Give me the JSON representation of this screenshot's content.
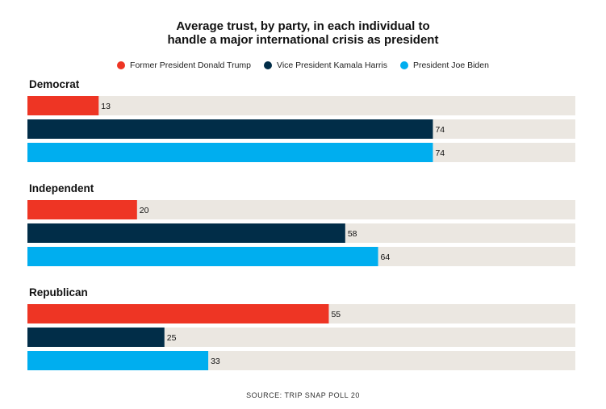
{
  "chart_data": {
    "type": "bar",
    "orientation": "horizontal",
    "title_lines": [
      "Average trust, by party, in each individual to",
      "handle a major international crisis as president"
    ],
    "categories": [
      "Democrat",
      "Independent",
      "Republican"
    ],
    "series": [
      {
        "name": "Former President Donald Trump",
        "color": "#ee3524",
        "values": [
          13,
          20,
          55
        ]
      },
      {
        "name": "Vice President Kamala Harris",
        "color": "#012d48",
        "values": [
          74,
          58,
          25
        ]
      },
      {
        "name": "President Joe Biden",
        "color": "#00aeef",
        "values": [
          74,
          64,
          33
        ]
      }
    ],
    "xlim": [
      0,
      100
    ],
    "track_color": "#ebe7e1",
    "source": "SOURCE: TRIP SNAP POLL 20"
  }
}
